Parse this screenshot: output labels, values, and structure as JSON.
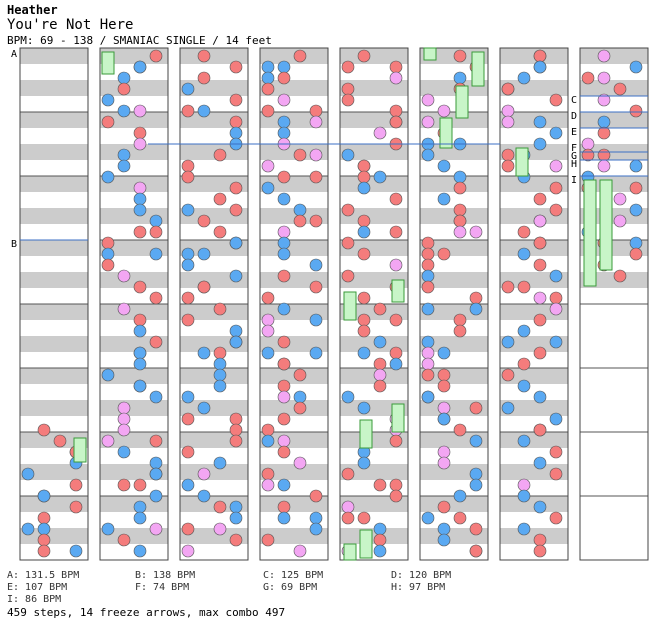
{
  "header": {
    "artist": "Heather",
    "title": "You're Not Here",
    "meta": "BPM: 69 - 138 / SMANIAC SINGLE / 14 feet"
  },
  "markers": [
    "A",
    "B",
    "C",
    "D",
    "E",
    "F",
    "G",
    "H",
    "I"
  ],
  "legend": [
    "A: 131.5 BPM",
    "B: 138 BPM",
    "C: 125 BPM",
    "D: 120 BPM",
    "E: 107 BPM",
    "F: 74 BPM",
    "G: 69 BPM",
    "H: 97 BPM",
    "I: 86 BPM"
  ],
  "summary": "459 steps, 14 freeze arrows, max combo 497",
  "colors": {
    "red": "#f47c7c",
    "blue": "#5aa9f2",
    "pink": "#f3a6f3",
    "green": "#c8f5c8",
    "stripe": "#cccccc",
    "line": "#3b6fc4"
  }
}
